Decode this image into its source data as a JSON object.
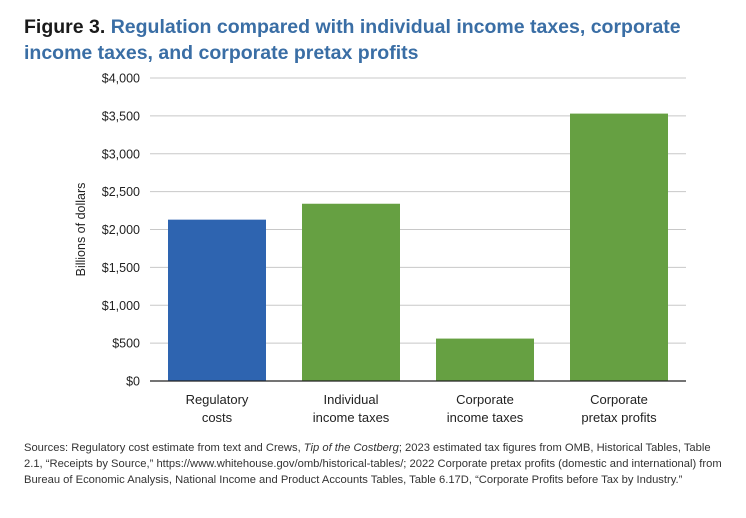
{
  "title": {
    "label": "Figure 3.",
    "text": "Regulation compared with individual income taxes, corporate income taxes, and corporate pretax profits"
  },
  "chart_data": {
    "type": "bar",
    "ylabel": "Billions of dollars",
    "ylim": [
      0,
      4000
    ],
    "yticks": [
      0,
      500,
      1000,
      1500,
      2000,
      2500,
      3000,
      3500,
      4000
    ],
    "ytick_labels": [
      "$0",
      "$500",
      "$1,000",
      "$1,500",
      "$2,000",
      "$2,500",
      "$3,000",
      "$3,500",
      "$4,000"
    ],
    "grid": true,
    "categories": [
      [
        "Regulatory",
        "costs"
      ],
      [
        "Individual",
        "income taxes"
      ],
      [
        "Corporate",
        "income taxes"
      ],
      [
        "Corporate",
        "pretax profits"
      ]
    ],
    "values": [
      2130,
      2340,
      560,
      3530
    ],
    "colors": [
      "#2e64b0",
      "#66a042",
      "#66a042",
      "#66a042"
    ]
  },
  "sources": {
    "prefix": "Sources: Regulatory cost estimate from text and Crews, ",
    "italic": "Tip of the Costberg",
    "suffix": "; 2023 estimated tax figures from OMB, Historical Tables, Table 2.1, “Receipts by Source,” https://www.whitehouse.gov/omb/historical-tables/; 2022 Corporate pretax profits (domestic and international) from Bureau of Economic Analysis, National Income and Product Accounts Tables, Table 6.17D, “Corporate Profits before Tax by Industry.”"
  }
}
